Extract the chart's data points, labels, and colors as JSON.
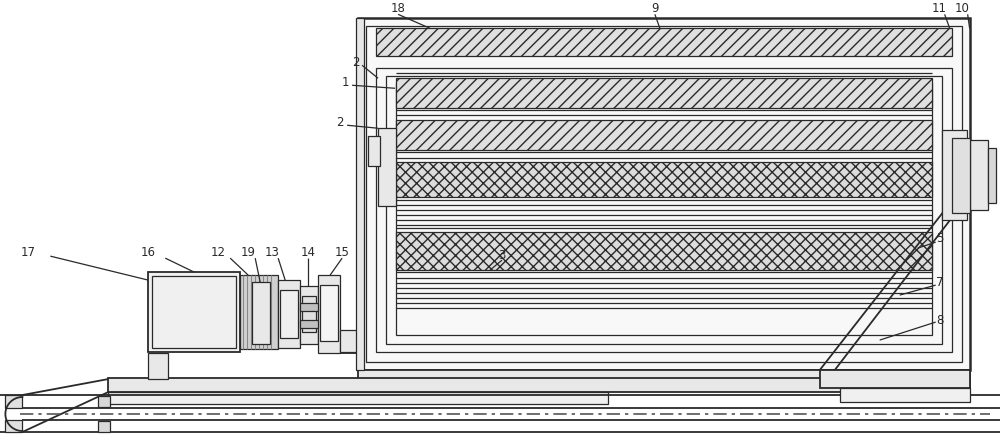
{
  "bg_color": "#ffffff",
  "lc": "#2a2a2a",
  "fig_width": 10.0,
  "fig_height": 4.42,
  "label_fs": 8.5
}
